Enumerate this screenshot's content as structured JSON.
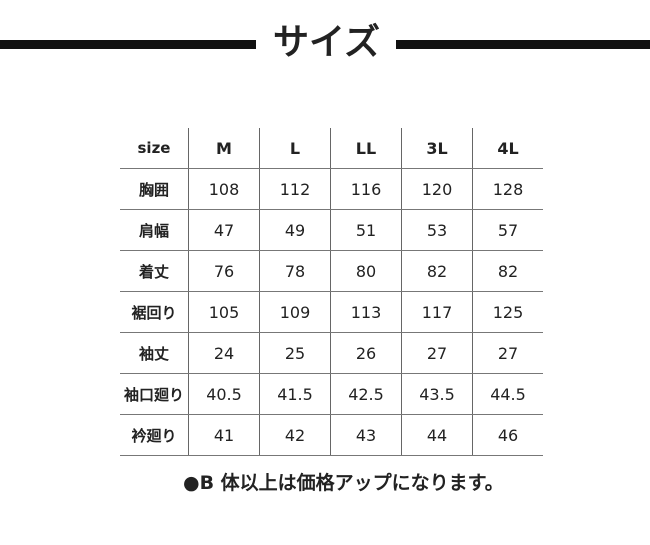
{
  "title": "サイズ",
  "header": [
    "size",
    "M",
    "L",
    "LL",
    "3L",
    "4L"
  ],
  "rows": [
    [
      "胸囲",
      "108",
      "112",
      "116",
      "120",
      "128"
    ],
    [
      "肩幅",
      "47",
      "49",
      "51",
      "53",
      "57"
    ],
    [
      "着丈",
      "76",
      "78",
      "80",
      "82",
      "82"
    ],
    [
      "裾回り",
      "105",
      "109",
      "113",
      "117",
      "125"
    ],
    [
      "袖丈",
      "24",
      "25",
      "26",
      "27",
      "27"
    ],
    [
      "袖口廻り",
      "40.5",
      "41.5",
      "42.5",
      "43.5",
      "44.5"
    ],
    [
      "衿廻り",
      "41",
      "42",
      "43",
      "44",
      "46"
    ]
  ],
  "note": "●B 体以上は価格アップになります。"
}
